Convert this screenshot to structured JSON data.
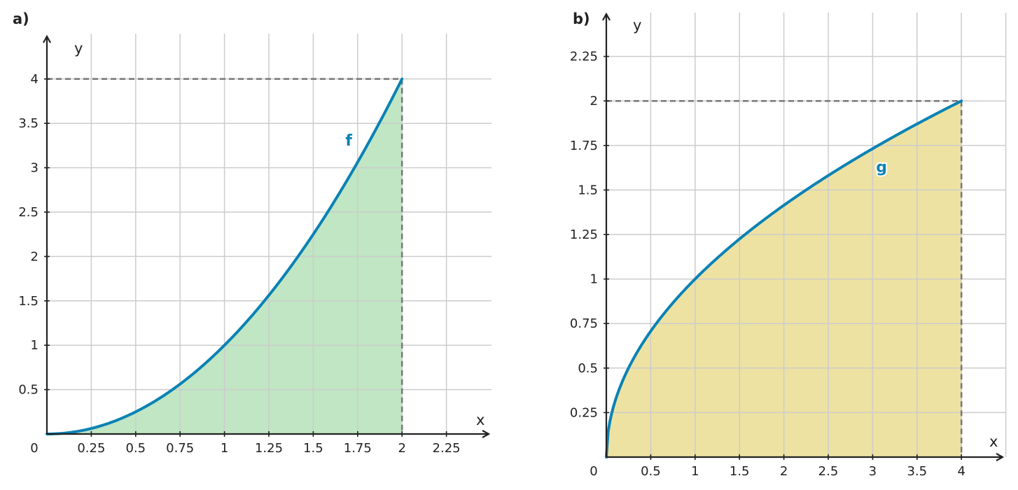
{
  "colors": {
    "grid": "#cccccc",
    "axis": "#222222",
    "curve": "#0a82b4",
    "dash": "#777777",
    "fill_a": "#c0e6c3",
    "fill_b": "#ede2a2"
  },
  "chart_data": [
    {
      "type": "area",
      "panel_label": "a)",
      "xlabel": "x",
      "ylabel": "y",
      "origin_label": "0",
      "function": "x^2",
      "curve_label": "f",
      "curve_label_at": [
        1.7,
        3.25
      ],
      "domain": [
        0,
        2
      ],
      "fill_range": [
        0,
        2
      ],
      "xlim": [
        0,
        2.5
      ],
      "ylim": [
        0,
        4.5
      ],
      "x_grid": [
        0.25,
        0.5,
        0.75,
        1,
        1.25,
        1.5,
        1.75,
        2,
        2.25
      ],
      "y_grid": [
        0.5,
        1,
        1.5,
        2,
        2.5,
        3,
        3.5,
        4
      ],
      "x_ticks": [
        "0.25",
        "0.5",
        "0.75",
        "1",
        "1.25",
        "1.5",
        "1.75",
        "2",
        "2.25"
      ],
      "y_ticks": [
        "0.5",
        "1",
        "1.5",
        "2",
        "2.5",
        "3",
        "3.5",
        "4"
      ],
      "dashed_point": [
        2,
        4
      ]
    },
    {
      "type": "area",
      "panel_label": "b)",
      "xlabel": "x",
      "ylabel": "y",
      "origin_label": "0",
      "function": "sqrt(x)",
      "curve_label": "g",
      "curve_label_at": [
        3.1,
        1.6
      ],
      "domain": [
        0,
        4
      ],
      "fill_range": [
        0,
        4
      ],
      "xlim": [
        0,
        4.5
      ],
      "ylim": [
        0,
        2.4
      ],
      "x_grid": [
        0.5,
        1,
        1.5,
        2,
        2.5,
        3,
        3.5,
        4,
        4.5
      ],
      "y_grid": [
        0.25,
        0.5,
        0.75,
        1,
        1.25,
        1.5,
        1.75,
        2,
        2.25
      ],
      "x_ticks": [
        "0.5",
        "1",
        "1.5",
        "2",
        "2.5",
        "3",
        "3.5",
        "4"
      ],
      "y_ticks": [
        "0.25",
        "0.5",
        "0.75",
        "1",
        "1.25",
        "1.5",
        "1.75",
        "2",
        "2.25"
      ],
      "dashed_point": [
        4,
        2
      ]
    }
  ]
}
